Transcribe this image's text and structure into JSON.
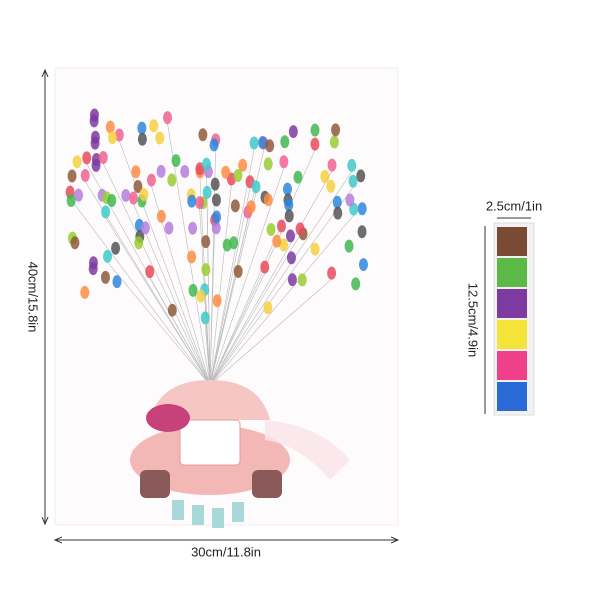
{
  "poster": {
    "height_label": "40cm/15.8in",
    "width_label": "30cm/11.8in"
  },
  "ink_pad": {
    "width_label": "2.5cm/1in",
    "height_label": "12.5cm/4.9in"
  }
}
